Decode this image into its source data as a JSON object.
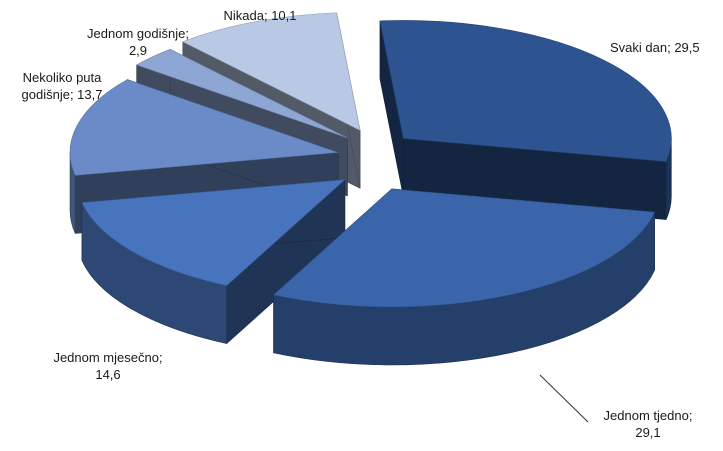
{
  "chart_data": {
    "type": "pie",
    "title": "",
    "variant": "3d-exploded",
    "slices": [
      {
        "label": "Svaki dan; 29,5",
        "category": "Svaki dan",
        "value": 29.5,
        "color": "#2d5390",
        "label_lines": [
          "Svaki dan; 29,5"
        ]
      },
      {
        "label": "Jednom tjedno; 29,1",
        "category": "Jednom tjedno",
        "value": 29.1,
        "color": "#3a65aa",
        "label_lines": [
          "Jednom tjedno;",
          "29,1"
        ]
      },
      {
        "label": "Jednom mjesečno; 14,6",
        "category": "Jednom mjesečno",
        "value": 14.6,
        "color": "#4874bd",
        "label_lines": [
          "Jednom mjesečno;",
          "14,6"
        ]
      },
      {
        "label": "Nekoliko puta godišnje; 13,7",
        "category": "Nekoliko puta godišnje",
        "value": 13.7,
        "color": "#6a8bc8",
        "label_lines": [
          "Nekoliko puta",
          "godišnje; 13,7"
        ]
      },
      {
        "label": "Jednom godišnje; 2,9",
        "category": "Jednom godišnje",
        "value": 2.9,
        "color": "#8ea6d4",
        "label_lines": [
          "Jednom godišnje;",
          "2,9"
        ]
      },
      {
        "label": "Nikada; 10,1",
        "category": "Nikada",
        "value": 10.1,
        "color": "#b9c8e4",
        "label_lines": [
          "Nikada; 10,1"
        ]
      }
    ]
  }
}
